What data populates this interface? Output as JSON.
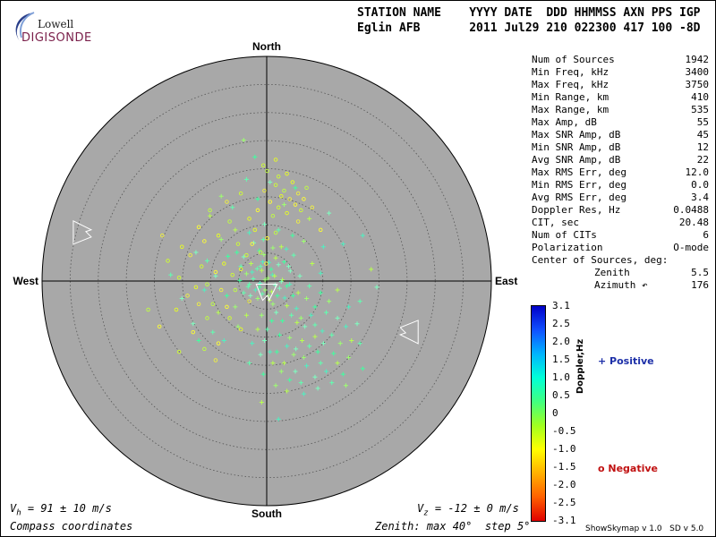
{
  "logo": {
    "top": "Lowell",
    "bottom": "DIGISONDE"
  },
  "header": {
    "line1": "STATION NAME    YYYY DATE  DDD HHMMSS AXN PPS IGP",
    "line2": "Eglin AFB       2011 Jul29 210 022300 417 100 -8D"
  },
  "directions": {
    "north": "North",
    "south": "South",
    "west": "West",
    "east": "East"
  },
  "stats": [
    {
      "label": "Num of Sources",
      "value": "1942"
    },
    {
      "label": "Min Freq, kHz",
      "value": "3400"
    },
    {
      "label": "Max Freq, kHz",
      "value": "3750"
    },
    {
      "label": "Min Range, km",
      "value": "410"
    },
    {
      "label": "Max Range, km",
      "value": "535"
    },
    {
      "label": "Max Amp, dB",
      "value": "55"
    },
    {
      "label": "Max SNR Amp, dB",
      "value": "45"
    },
    {
      "label": "Min SNR Amp, dB",
      "value": "12"
    },
    {
      "label": "Avg SNR Amp, dB",
      "value": "22"
    },
    {
      "label": "Max RMS Err, deg",
      "value": "12.0"
    },
    {
      "label": "Min RMS Err, deg",
      "value": "0.0"
    },
    {
      "label": "Avg RMS Err, deg",
      "value": "3.4"
    },
    {
      "label": "Doppler Res, Hz",
      "value": "0.0488"
    },
    {
      "label": "CIT, sec",
      "value": "20.48"
    },
    {
      "label": "Num of CITs",
      "value": "6"
    },
    {
      "label": "Polarization",
      "value": "O-mode"
    },
    {
      "label": "Center of Sources, deg:",
      "value": ""
    },
    {
      "label": "Zenith",
      "value": "5.5",
      "indent": true
    },
    {
      "label": "Azimuth ↶",
      "value": "176",
      "indent": true
    }
  ],
  "colorbar": {
    "label": "Doppler,Hz",
    "ticks": [
      "3.1",
      "2.5",
      "2.0",
      "1.5",
      "1.0",
      "0.5",
      "0",
      "-0.5",
      "-1.0",
      "-1.5",
      "-2.0",
      "-2.5",
      "-3.1"
    ],
    "positive": "+ Positive",
    "negative": "o Negative",
    "colors": [
      "#0000c8",
      "#1050ff",
      "#00b4ff",
      "#00ffd8",
      "#40ff80",
      "#a0ff20",
      "#ffff00",
      "#ffb000",
      "#ff6000",
      "#e00000"
    ]
  },
  "footer": {
    "vh": "V",
    "vh_sub": "h",
    "vh_value": " = 91 ± 10 m/s",
    "vz": "V",
    "vz_sub": "z",
    "vz_value": " = -12 ± 0 m/s",
    "compass": "Compass coordinates",
    "zenith": "Zenith: max 40°  step 5°",
    "version": "ShowSkymap v 1.0   SD v 5.0"
  },
  "chart_data": {
    "type": "scatter",
    "projection": "polar-zenith",
    "zenith_max_deg": 40,
    "zenith_step_deg": 5,
    "center_of_sources": {
      "zenith": 5.5,
      "azimuth": 176
    },
    "velocity_arrows": [
      {
        "name": "west-velocity-arrow",
        "azimuth": 285,
        "zenith": 34
      },
      {
        "name": "east-velocity-arrow",
        "azimuth": 110,
        "zenith": 27
      },
      {
        "name": "center-velocity-arrow",
        "azimuth": 176,
        "zenith": 2
      }
    ],
    "positive_doppler_points": [
      [
        -2.3,
        -6.8
      ],
      [
        -0.6,
        -7.4
      ],
      [
        -1.3,
        -5.4
      ],
      [
        1.1,
        -5.9
      ],
      [
        2.6,
        -6.1
      ],
      [
        3.5,
        -5.7
      ],
      [
        -4.1,
        -4.3
      ],
      [
        4.8,
        -4.6
      ],
      [
        -5.3,
        -5.1
      ],
      [
        -0.5,
        -4.7
      ],
      [
        -2.8,
        -3.1
      ],
      [
        0.4,
        -3.3
      ],
      [
        2.1,
        -2.9
      ],
      [
        -1.7,
        -2.2
      ],
      [
        3.1,
        -3.4
      ],
      [
        -3.6,
        -1.3
      ],
      [
        -0.9,
        -1.9
      ],
      [
        1.0,
        -1.1
      ],
      [
        4.2,
        -1.8
      ],
      [
        -2.4,
        -0.4
      ],
      [
        -4.8,
        -0.1
      ],
      [
        0.2,
        -0.5
      ],
      [
        2.8,
        -0.2
      ],
      [
        -1.2,
        0.4
      ],
      [
        1.5,
        0.7
      ],
      [
        -3.3,
        1.0
      ],
      [
        3.6,
        0.9
      ],
      [
        -0.3,
        1.6
      ],
      [
        0.9,
        1.9
      ],
      [
        -2.0,
        1.6
      ],
      [
        2.3,
        1.3
      ],
      [
        -0.8,
        2.3
      ],
      [
        1.9,
        2.6
      ],
      [
        -1.6,
        3.1
      ],
      [
        0.5,
        3.4
      ],
      [
        3.2,
        3.0
      ],
      [
        -2.9,
        2.6
      ],
      [
        -4.1,
        2.1
      ],
      [
        4.7,
        2.6
      ],
      [
        1.1,
        4.1
      ],
      [
        3.6,
        4.4
      ],
      [
        5.3,
        4.9
      ],
      [
        1.7,
        5.6
      ],
      [
        4.4,
        6.1
      ],
      [
        2.8,
        7.1
      ],
      [
        6.1,
        6.6
      ],
      [
        5.4,
        7.4
      ],
      [
        7.9,
        6.1
      ],
      [
        6.8,
        8.1
      ],
      [
        8.6,
        7.8
      ],
      [
        2.3,
        9.6
      ],
      [
        4.1,
        10.1
      ],
      [
        6.3,
        10.6
      ],
      [
        3.6,
        11.6
      ],
      [
        5.2,
        12.1
      ],
      [
        7.6,
        11.6
      ],
      [
        1.8,
        12.6
      ],
      [
        4.8,
        13.1
      ],
      [
        8.6,
        9.9
      ],
      [
        9.9,
        8.9
      ],
      [
        10.1,
        11.1
      ],
      [
        11.6,
        9.6
      ],
      [
        9.1,
        12.6
      ],
      [
        6.6,
        13.6
      ],
      [
        3.1,
        14.6
      ],
      [
        7.1,
        15.1
      ],
      [
        5.1,
        16.1
      ],
      [
        9.6,
        14.6
      ],
      [
        11.9,
        12.9
      ],
      [
        13.1,
        11.1
      ],
      [
        12.6,
        14.6
      ],
      [
        10.6,
        16.1
      ],
      [
        8.6,
        17.1
      ],
      [
        6.1,
        18.1
      ],
      [
        4.1,
        17.6
      ],
      [
        2.6,
        16.1
      ],
      [
        1.1,
        14.6
      ],
      [
        0.6,
        12.6
      ],
      [
        -0.4,
        10.6
      ],
      [
        0.1,
        8.6
      ],
      [
        0.9,
        7.1
      ],
      [
        -0.9,
        6.1
      ],
      [
        -1.6,
        8.6
      ],
      [
        -2.6,
        11.1
      ],
      [
        -1.1,
        13.1
      ],
      [
        -3.1,
        14.6
      ],
      [
        -0.6,
        16.6
      ],
      [
        1.6,
        18.6
      ],
      [
        3.6,
        19.6
      ],
      [
        6.6,
        20.1
      ],
      [
        9.1,
        19.1
      ],
      [
        11.6,
        18.1
      ],
      [
        13.6,
        16.6
      ],
      [
        14.6,
        13.6
      ],
      [
        15.1,
        10.6
      ],
      [
        14.1,
        8.1
      ],
      [
        12.6,
        6.6
      ],
      [
        10.6,
        5.6
      ],
      [
        8.6,
        4.6
      ],
      [
        7.1,
        3.1
      ],
      [
        5.6,
        2.1
      ],
      [
        4.1,
        0.6
      ],
      [
        5.9,
        -0.9
      ],
      [
        7.6,
        0.9
      ],
      [
        9.6,
        2.1
      ],
      [
        11.1,
        3.6
      ],
      [
        12.6,
        1.6
      ],
      [
        14.6,
        4.6
      ],
      [
        16.1,
        7.6
      ],
      [
        16.6,
        11.1
      ],
      [
        -6.9,
        -4.4
      ],
      [
        -8.1,
        -7.4
      ],
      [
        -5.6,
        -9.1
      ],
      [
        -3.1,
        -8.6
      ],
      [
        -0.4,
        -10.1
      ],
      [
        2.1,
        -9.1
      ],
      [
        4.6,
        -8.1
      ],
      [
        6.6,
        -7.1
      ],
      [
        8.1,
        -3.1
      ],
      [
        9.6,
        -1.4
      ],
      [
        -9.1,
        -0.9
      ],
      [
        -10.6,
        -3.6
      ],
      [
        -7.1,
        2.6
      ],
      [
        -5.6,
        4.6
      ],
      [
        -8.6,
        5.6
      ],
      [
        -11.1,
        1.6
      ],
      [
        -12.6,
        -5.1
      ],
      [
        -6.1,
        -13.1
      ],
      [
        -1.6,
        -14.6
      ],
      [
        3.1,
        -13.6
      ],
      [
        7.6,
        -11.1
      ],
      [
        10.1,
        -6.1
      ],
      [
        -13.1,
        7.6
      ],
      [
        -9.6,
        9.1
      ],
      [
        -12.1,
        10.6
      ],
      [
        -5.1,
        8.1
      ],
      [
        -3.6,
        6.1
      ],
      [
        -7.6,
        10.6
      ],
      [
        0.6,
        -17.6
      ],
      [
        -3.6,
        -18.1
      ],
      [
        5.1,
        -16.6
      ],
      [
        -8.1,
        -15.1
      ],
      [
        -10.1,
        -11.6
      ],
      [
        13.6,
        -6.6
      ],
      [
        11.1,
        -12.1
      ],
      [
        16.6,
        3.6
      ],
      [
        17.1,
        15.6
      ],
      [
        14.1,
        18.6
      ],
      [
        -0.9,
        21.6
      ],
      [
        2.1,
        24.6
      ],
      [
        -15.1,
        3.1
      ],
      [
        -17.1,
        -1.1
      ],
      [
        -2.1,
        -22.1
      ],
      [
        -4.1,
        -25.1
      ],
      [
        18.6,
        -2.1
      ],
      [
        17.1,
        -8.1
      ],
      [
        19.6,
        1.1
      ],
      [
        -1.1,
        -2.6
      ],
      [
        0.8,
        -2.1
      ],
      [
        -0.3,
        -0.2
      ],
      [
        1.6,
        -4.1
      ],
      [
        -2.6,
        -1.6
      ],
      [
        2.6,
        0.1
      ],
      [
        -3.1,
        0.6
      ],
      [
        -1.3,
        1.1
      ],
      [
        0.3,
        2.6
      ],
      [
        1.4,
        -0.9
      ],
      [
        -0.7,
        -3.4
      ],
      [
        3.9,
        -2.6
      ],
      [
        -4.6,
        -2.6
      ]
    ],
    "negative_doppler_points": [
      [
        2.1,
        -13.1
      ],
      [
        3.6,
        -12.1
      ],
      [
        5.1,
        -13.6
      ],
      [
        1.1,
        -11.6
      ],
      [
        4.1,
        -14.6
      ],
      [
        6.1,
        -12.6
      ],
      [
        2.6,
        -15.1
      ],
      [
        0.6,
        -14.1
      ],
      [
        3.1,
        -16.1
      ],
      [
        5.6,
        -15.6
      ],
      [
        1.6,
        -17.1
      ],
      [
        4.6,
        -17.6
      ],
      [
        6.6,
        -14.6
      ],
      [
        7.1,
        -16.6
      ],
      [
        -0.4,
        -16.1
      ],
      [
        2.1,
        -18.6
      ],
      [
        3.6,
        -19.1
      ],
      [
        -1.6,
        -12.6
      ],
      [
        0.1,
        -19.6
      ],
      [
        5.6,
        -10.6
      ],
      [
        -6.1,
        -1.1
      ],
      [
        -7.6,
        -3.1
      ],
      [
        -9.1,
        -1.6
      ],
      [
        -10.6,
        0.6
      ],
      [
        -8.1,
        1.6
      ],
      [
        -11.6,
        -2.6
      ],
      [
        -12.6,
        1.1
      ],
      [
        -7.1,
        4.6
      ],
      [
        -9.6,
        4.1
      ],
      [
        -13.6,
        -4.6
      ],
      [
        -5.1,
        -6.6
      ],
      [
        -8.6,
        -8.1
      ],
      [
        -11.1,
        -7.1
      ],
      [
        -6.6,
        -10.6
      ],
      [
        -14.1,
        2.6
      ],
      [
        -15.6,
        -0.6
      ],
      [
        -16.1,
        5.1
      ],
      [
        -13.1,
        9.1
      ],
      [
        -11.1,
        12.1
      ],
      [
        -9.1,
        14.1
      ],
      [
        -3.6,
        -4.6
      ],
      [
        -4.6,
        -2.1
      ],
      [
        -2.6,
        -6.6
      ],
      [
        -5.6,
        1.6
      ],
      [
        -3.1,
        3.6
      ],
      [
        -6.6,
        6.6
      ],
      [
        -4.6,
        8.6
      ],
      [
        -8.6,
        11.1
      ],
      [
        -10.6,
        6.6
      ],
      [
        -12.1,
        4.1
      ],
      [
        -17.6,
        -3.6
      ],
      [
        -15.1,
        -6.1
      ],
      [
        -12.1,
        -9.6
      ],
      [
        -10.1,
        -12.6
      ],
      [
        -7.1,
        -14.1
      ],
      [
        -4.6,
        -15.6
      ],
      [
        -2.1,
        -9.1
      ],
      [
        0.1,
        -7.6
      ],
      [
        1.6,
        -8.6
      ],
      [
        8.1,
        -13.1
      ],
      [
        -0.6,
        -20.6
      ],
      [
        1.6,
        -21.6
      ],
      [
        -19.1,
        8.1
      ],
      [
        -21.1,
        5.1
      ],
      [
        -18.6,
        -8.1
      ],
      [
        -15.6,
        12.6
      ],
      [
        -3.1,
        -11.1
      ],
      [
        9.6,
        -9.1
      ],
      [
        -1.1,
        -5.1
      ],
      [
        -0.1,
        -3.1
      ]
    ]
  }
}
